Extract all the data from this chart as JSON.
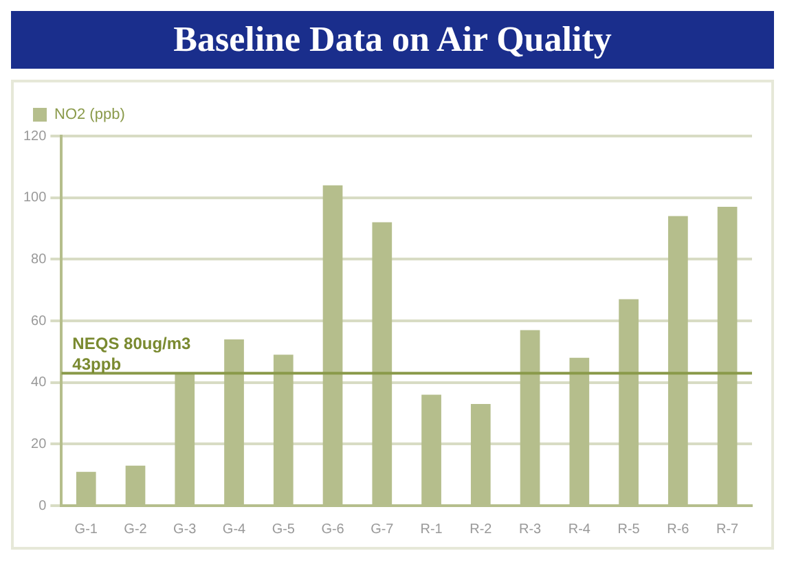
{
  "chart_data": {
    "type": "bar",
    "title": "Baseline Data on Air Quality",
    "categories": [
      "G-1",
      "G-2",
      "G-3",
      "G-4",
      "G-5",
      "G-6",
      "G-7",
      "R-1",
      "R-2",
      "R-3",
      "R-4",
      "R-5",
      "R-6",
      "R-7"
    ],
    "series": [
      {
        "name": "NO2 (ppb)",
        "color": "#b5be8c",
        "values": [
          11,
          13,
          43,
          54,
          49,
          104,
          92,
          36,
          33,
          57,
          48,
          67,
          94,
          97
        ]
      }
    ],
    "ylim": [
      0,
      120
    ],
    "yticks": [
      0,
      20,
      40,
      60,
      80,
      100,
      120
    ],
    "grid": "y",
    "legend": "top left",
    "ref_lines": [
      {
        "axis": "y",
        "value": 43,
        "label": "NEQS 80ug/m3\n43ppb",
        "color": "#8a9a4a"
      }
    ]
  }
}
